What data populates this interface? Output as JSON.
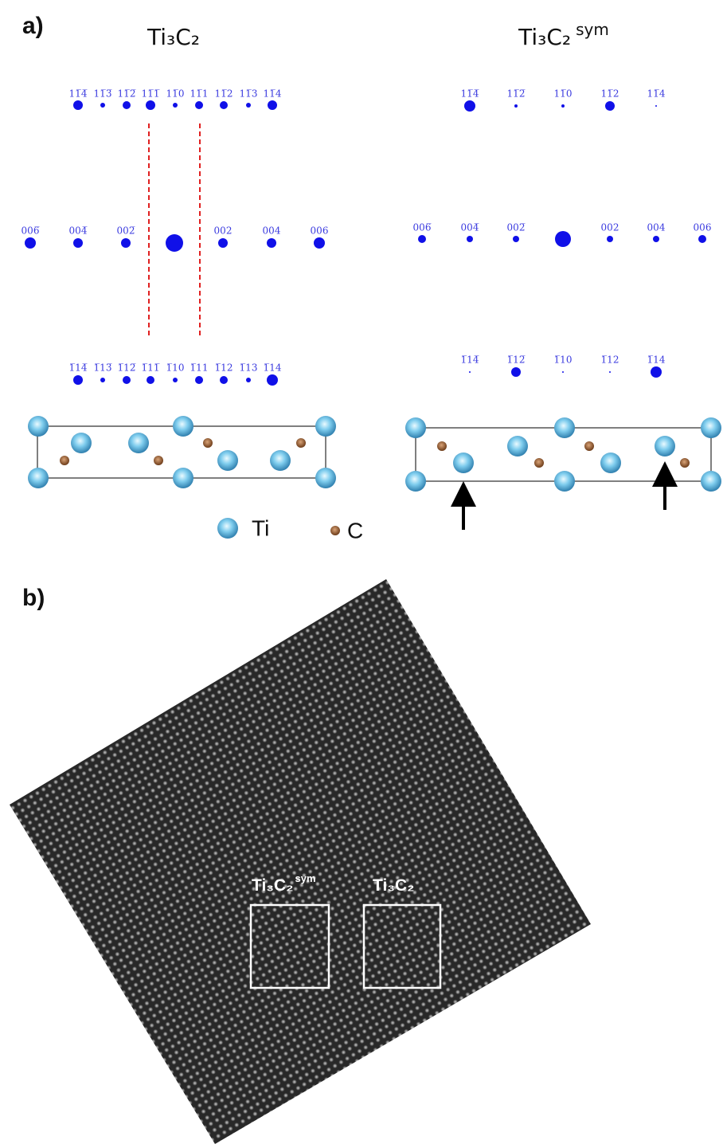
{
  "panel_a": {
    "label": "a)",
    "left_title": "Ti₃C₂",
    "right_title": {
      "formula": "Ti₃C₂",
      "superscript": "sym"
    },
    "left_spots": {
      "top": [
        "11̅4̅",
        "11̅3̅",
        "11̅2̅",
        "11̅1̅",
        "11̅0",
        "11̅1",
        "11̅2",
        "11̅3",
        "11̅4"
      ],
      "middle": [
        "006̅",
        "004̅",
        "002̅",
        "002",
        "004",
        "006"
      ],
      "bottom": [
        "1̅14̅",
        "1̅13̅",
        "1̅12̅",
        "1̅11̅",
        "1̅10",
        "1̅11",
        "1̅12",
        "1̅13",
        "1̅14"
      ]
    },
    "right_spots": {
      "top": [
        "11̅4̅",
        "11̅2̅",
        "11̅0",
        "11̅2",
        "11̅4"
      ],
      "middle": [
        "006̅",
        "004̅",
        "002̅",
        "002",
        "004",
        "006"
      ],
      "bottom": [
        "1̅14̅",
        "1̅12̅",
        "1̅10",
        "1̅12",
        "1̅14"
      ]
    },
    "legend": {
      "ti": "Ti",
      "c": "C"
    }
  },
  "panel_b": {
    "label": "b)",
    "box_labels": [
      {
        "formula": "Ti₃C₂",
        "superscript": "sym"
      },
      {
        "formula": "Ti₃C₂"
      }
    ]
  }
}
